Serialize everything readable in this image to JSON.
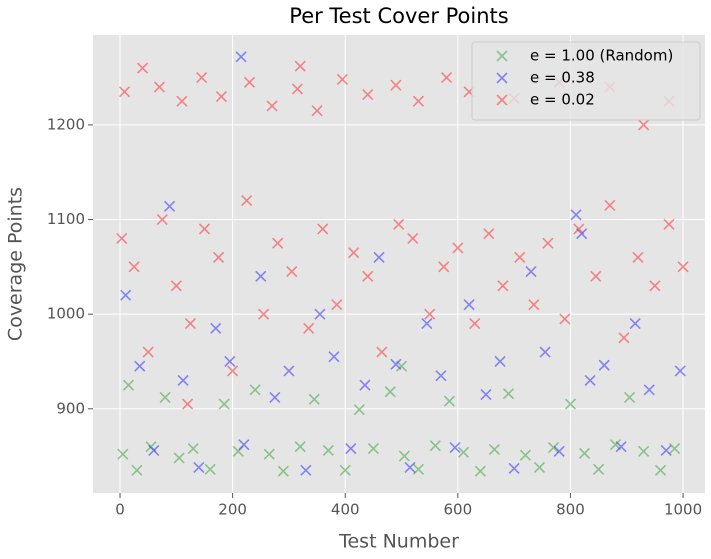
{
  "chart_data": {
    "type": "scatter",
    "title": "Per Test Cover Points",
    "x_label": "Test Number",
    "y_label": "Coverage Points",
    "xlim": [
      -48,
      1039
    ],
    "ylim": [
      811,
      1295
    ],
    "xticks": [
      0,
      200,
      400,
      600,
      800,
      1000
    ],
    "yticks": [
      900,
      1000,
      1100,
      1200
    ],
    "grid": true,
    "legend": "upper right",
    "marker": "x",
    "series": [
      {
        "name": "e = 1.00 (Random)",
        "color": "#2ca02c",
        "x": [
          5,
          30,
          55,
          80,
          105,
          130,
          160,
          185,
          210,
          240,
          265,
          290,
          320,
          345,
          370,
          400,
          425,
          450,
          480,
          505,
          530,
          560,
          585,
          610,
          640,
          665,
          690,
          720,
          745,
          770,
          800,
          825,
          850,
          880,
          905,
          930,
          960,
          985,
          15,
          500
        ],
        "values": [
          852,
          835,
          860,
          912,
          848,
          858,
          836,
          905,
          855,
          920,
          852,
          834,
          860,
          910,
          856,
          835,
          899,
          858,
          918,
          850,
          836,
          861,
          908,
          854,
          834,
          857,
          916,
          851,
          838,
          859,
          905,
          853,
          836,
          862,
          912,
          855,
          835,
          858,
          925,
          945
        ]
      },
      {
        "name": "e = 0.38",
        "color": "#1f1fff",
        "x": [
          10,
          35,
          60,
          88,
          112,
          140,
          170,
          195,
          220,
          250,
          275,
          300,
          330,
          355,
          380,
          410,
          435,
          460,
          490,
          515,
          545,
          570,
          595,
          620,
          650,
          675,
          700,
          730,
          755,
          780,
          810,
          835,
          860,
          890,
          915,
          940,
          970,
          995,
          215,
          820
        ],
        "values": [
          1020,
          945,
          856,
          1114,
          930,
          838,
          985,
          950,
          862,
          1040,
          912,
          940,
          835,
          1000,
          955,
          858,
          925,
          1060,
          947,
          838,
          990,
          935,
          859,
          1010,
          915,
          950,
          837,
          1045,
          960,
          855,
          1105,
          930,
          946,
          860,
          990,
          920,
          856,
          940,
          1272,
          1085
        ]
      },
      {
        "name": "e = 0.02",
        "color": "#ff1f1f",
        "x": [
          3,
          25,
          50,
          75,
          100,
          125,
          150,
          175,
          200,
          225,
          255,
          280,
          305,
          335,
          360,
          385,
          415,
          440,
          465,
          495,
          520,
          550,
          575,
          600,
          630,
          655,
          680,
          710,
          735,
          760,
          790,
          815,
          845,
          870,
          895,
          920,
          950,
          975,
          1000,
          120,
          8,
          40,
          70,
          110,
          145,
          180,
          230,
          270,
          315,
          350,
          395,
          440,
          490,
          530,
          580,
          620,
          700,
          780,
          870,
          930,
          975,
          320
        ],
        "values": [
          1080,
          1050,
          960,
          1100,
          1030,
          990,
          1090,
          1060,
          940,
          1120,
          1000,
          1075,
          1045,
          985,
          1090,
          1010,
          1065,
          1040,
          960,
          1095,
          1080,
          1000,
          1050,
          1070,
          990,
          1085,
          1030,
          1060,
          1010,
          1075,
          995,
          1090,
          1040,
          1115,
          975,
          1060,
          1030,
          1095,
          1050,
          905,
          1235,
          1260,
          1240,
          1225,
          1250,
          1230,
          1245,
          1220,
          1238,
          1215,
          1248,
          1232,
          1242,
          1225,
          1250,
          1235,
          1228,
          1245,
          1240,
          1200,
          1225,
          1262
        ]
      }
    ]
  }
}
